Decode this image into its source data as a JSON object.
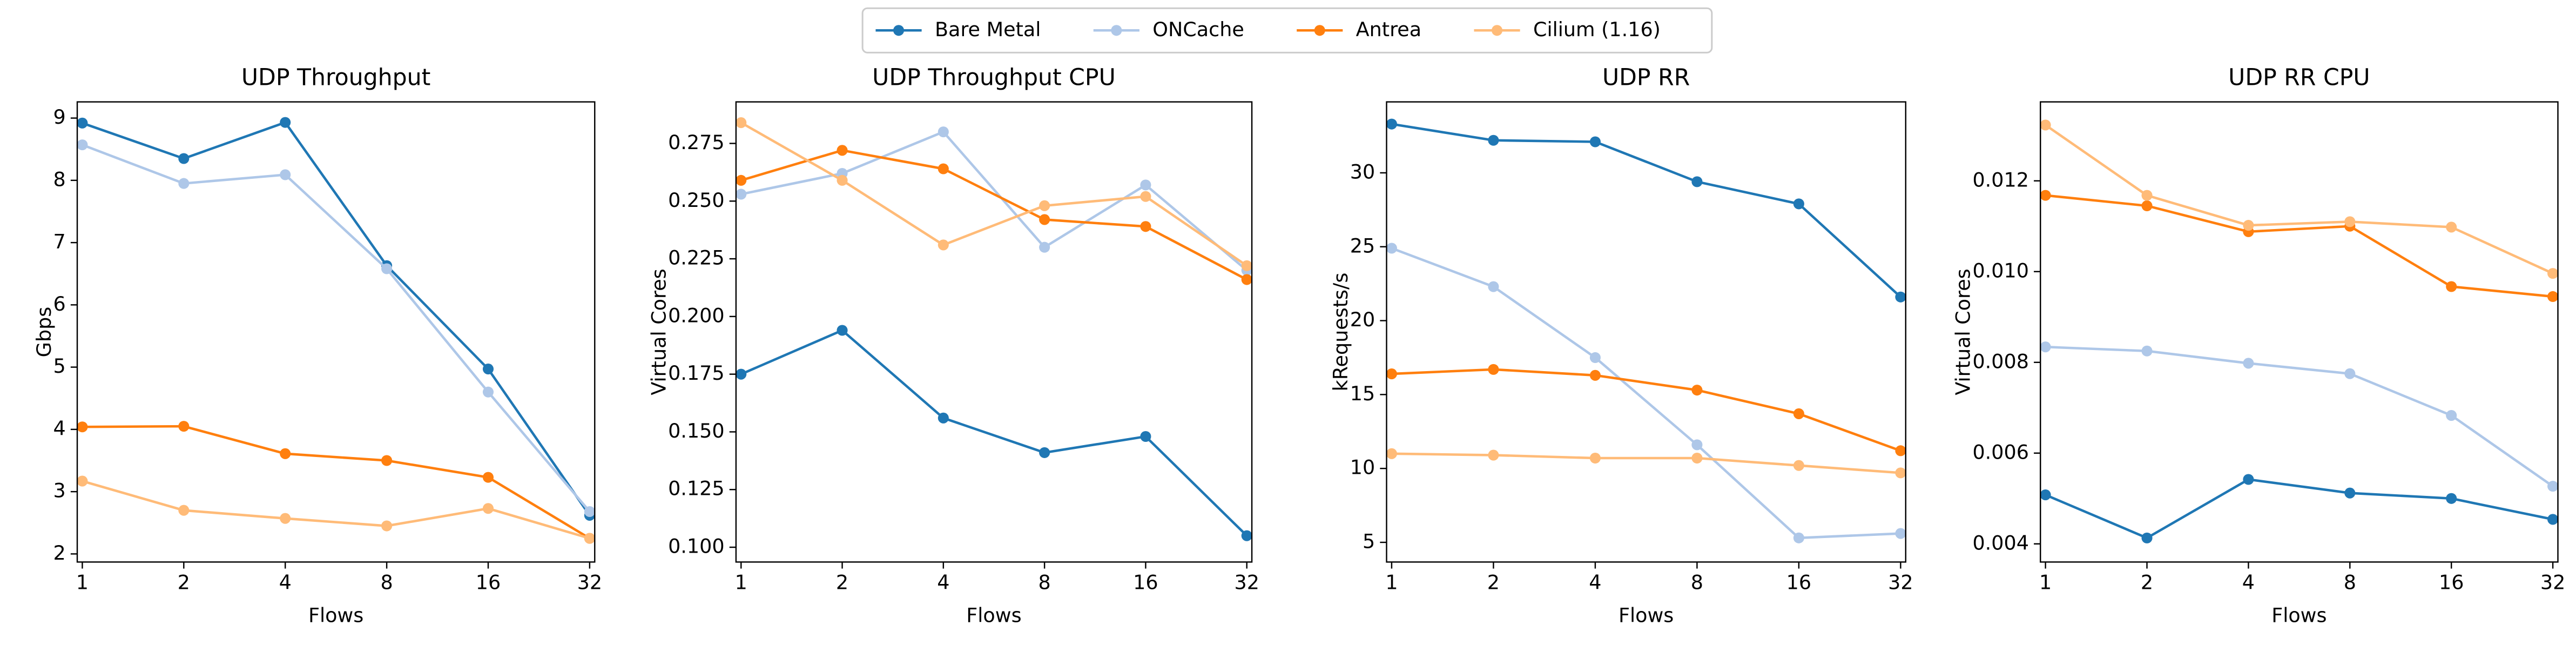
{
  "chart_data": [
    {
      "type": "line",
      "title": "UDP Throughput",
      "x_label": "Flows",
      "y_label": "Gbps",
      "categories": [
        "1",
        "2",
        "4",
        "8",
        "16",
        "32"
      ],
      "ylim": [
        1.87,
        9.26
      ],
      "yticks": [
        2,
        3,
        4,
        5,
        6,
        7,
        8,
        9
      ],
      "series": [
        {
          "name": "Bare Metal",
          "color": "#1f77b4",
          "values": [
            8.92,
            8.35,
            8.93,
            6.63,
            4.97,
            2.62
          ]
        },
        {
          "name": "ONCache",
          "color": "#aec7e8",
          "values": [
            8.57,
            7.95,
            8.09,
            6.58,
            4.6,
            2.68
          ]
        },
        {
          "name": "Antrea",
          "color": "#ff7f0e",
          "values": [
            4.04,
            4.05,
            3.61,
            3.5,
            3.23,
            2.25
          ]
        },
        {
          "name": "Cilium (1.16)",
          "color": "#ffbb78",
          "values": [
            3.17,
            2.7,
            2.57,
            2.45,
            2.73,
            2.25
          ]
        }
      ]
    },
    {
      "type": "line",
      "title": "UDP Throughput CPU",
      "x_label": "Flows",
      "y_label": "Virtual Cores",
      "categories": [
        "1",
        "2",
        "4",
        "8",
        "16",
        "32"
      ],
      "ylim": [
        0.0936,
        0.293
      ],
      "yticks": [
        {
          "value": 0.1,
          "label": "0.100"
        },
        0.125,
        {
          "value": 0.15,
          "label": "0.150"
        },
        0.175,
        {
          "value": 0.2,
          "label": "0.200"
        },
        0.225,
        {
          "value": 0.25,
          "label": "0.250"
        },
        0.275
      ],
      "series": [
        {
          "name": "Bare Metal",
          "color": "#1f77b4",
          "values": [
            0.175,
            0.194,
            0.156,
            0.141,
            0.148,
            0.105
          ]
        },
        {
          "name": "ONCache",
          "color": "#aec7e8",
          "values": [
            0.253,
            0.262,
            0.28,
            0.23,
            0.257,
            0.22
          ]
        },
        {
          "name": "Antrea",
          "color": "#ff7f0e",
          "values": [
            0.259,
            0.272,
            0.264,
            0.242,
            0.239,
            0.216
          ]
        },
        {
          "name": "Cilium (1.16)",
          "color": "#ffbb78",
          "values": [
            0.284,
            0.259,
            0.231,
            0.248,
            0.252,
            0.222
          ]
        }
      ]
    },
    {
      "type": "line",
      "title": "UDP RR",
      "x_label": "Flows",
      "y_label": "kRequests/s",
      "categories": [
        "1",
        "2",
        "4",
        "8",
        "16",
        "32"
      ],
      "ylim": [
        3.67,
        34.8
      ],
      "yticks": [
        5,
        10,
        15,
        20,
        25,
        30
      ],
      "series": [
        {
          "name": "Bare Metal",
          "color": "#1f77b4",
          "values": [
            33.3,
            32.2,
            32.1,
            29.4,
            27.9,
            21.6
          ]
        },
        {
          "name": "ONCache",
          "color": "#aec7e8",
          "values": [
            24.9,
            22.3,
            17.5,
            11.6,
            5.3,
            5.6
          ]
        },
        {
          "name": "Antrea",
          "color": "#ff7f0e",
          "values": [
            16.4,
            16.7,
            16.3,
            15.3,
            13.7,
            11.2
          ]
        },
        {
          "name": "Cilium (1.16)",
          "color": "#ffbb78",
          "values": [
            11.0,
            10.9,
            10.7,
            10.7,
            10.2,
            9.7
          ]
        }
      ]
    },
    {
      "type": "line",
      "title": "UDP RR CPU",
      "x_label": "Flows",
      "y_label": "Virtual Cores",
      "categories": [
        "1",
        "2",
        "4",
        "8",
        "16",
        "32"
      ],
      "ylim": [
        0.0036,
        0.01374
      ],
      "yticks": [
        0.004,
        0.006,
        0.008,
        {
          "value": 0.01,
          "label": "0.010"
        },
        0.012
      ],
      "series": [
        {
          "name": "Bare Metal",
          "color": "#1f77b4",
          "values": [
            0.00508,
            0.00413,
            0.00542,
            0.00512,
            0.005,
            0.00454
          ]
        },
        {
          "name": "ONCache",
          "color": "#aec7e8",
          "values": [
            0.00834,
            0.00825,
            0.00798,
            0.00775,
            0.00683,
            0.00527
          ]
        },
        {
          "name": "Antrea",
          "color": "#ff7f0e",
          "values": [
            0.01168,
            0.01145,
            0.01088,
            0.011,
            0.00967,
            0.00945
          ]
        },
        {
          "name": "Cilium (1.16)",
          "color": "#ffbb78",
          "values": [
            0.01323,
            0.01168,
            0.01102,
            0.0111,
            0.01098,
            0.00996
          ]
        }
      ]
    }
  ]
}
